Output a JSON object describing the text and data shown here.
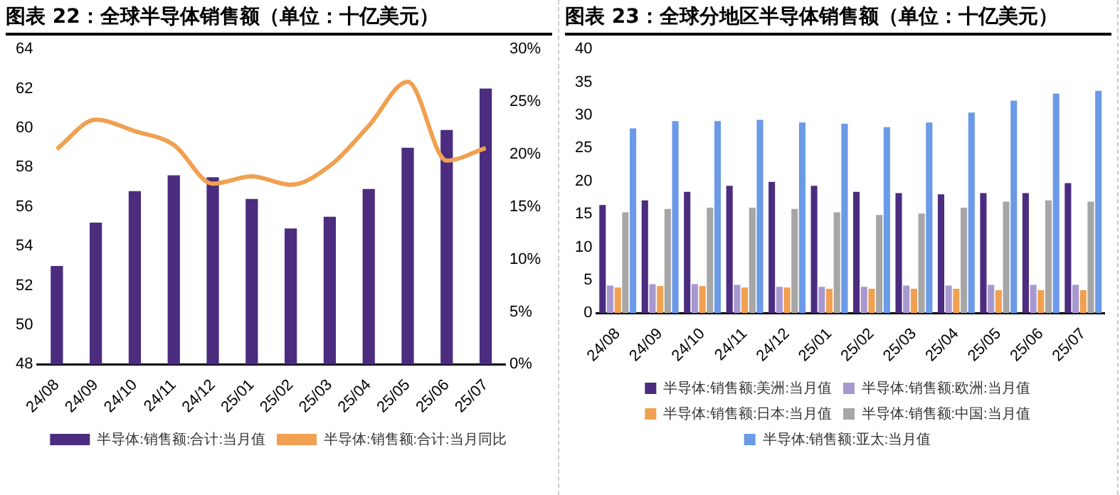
{
  "chart_data": [
    {
      "type": "bar",
      "title": "图表 22：全球半导体销售额（单位：十亿美元）",
      "categories": [
        "24/08",
        "24/09",
        "24/10",
        "24/11",
        "24/12",
        "25/01",
        "25/02",
        "25/03",
        "25/04",
        "25/05",
        "25/06",
        "25/07"
      ],
      "series": [
        {
          "name": "半导体:销售额:合计:当月值",
          "type": "bar",
          "color": "#4b2c7f",
          "values": [
            53.0,
            55.2,
            56.8,
            57.6,
            57.5,
            56.4,
            54.9,
            55.5,
            56.9,
            59.0,
            59.9,
            62.0
          ]
        },
        {
          "name": "半导体:销售额:合计:当月同比",
          "type": "line",
          "axis": "y2",
          "color": "#f0a050",
          "values": [
            20.5,
            23.3,
            22.2,
            20.9,
            17.2,
            17.9,
            17.1,
            18.9,
            22.7,
            26.9,
            19.4,
            20.6
          ]
        }
      ],
      "ylim": [
        48,
        64
      ],
      "yticks": [
        48,
        50,
        52,
        54,
        56,
        58,
        60,
        62,
        64
      ],
      "y2lim": [
        0,
        30
      ],
      "y2ticks": [
        {
          "value": 0,
          "label": "0%"
        },
        {
          "value": 5,
          "label": "5%"
        },
        {
          "value": 10,
          "label": "10%"
        },
        {
          "value": 15,
          "label": "15%"
        },
        {
          "value": 20,
          "label": "20%"
        },
        {
          "value": 25,
          "label": "25%"
        },
        {
          "value": 30,
          "label": "30%"
        }
      ],
      "grid": false,
      "legend": "bottom",
      "marker": "none"
    },
    {
      "type": "bar",
      "title": "图表 23：全球分地区半导体销售额（单位：十亿美元）",
      "categories": [
        "24/08",
        "24/09",
        "24/10",
        "24/11",
        "24/12",
        "25/01",
        "25/02",
        "25/03",
        "25/04",
        "25/05",
        "25/06",
        "25/07"
      ],
      "series": [
        {
          "name": "半导体:销售额:美洲:当月值",
          "color": "#4b2c7f",
          "values": [
            16.4,
            17.1,
            18.4,
            19.3,
            19.9,
            19.3,
            18.4,
            18.2,
            18.0,
            18.2,
            18.2,
            19.7
          ]
        },
        {
          "name": "半导体:销售额:欧洲:当月值",
          "color": "#a898d0",
          "values": [
            4.2,
            4.4,
            4.4,
            4.3,
            4.0,
            4.0,
            4.0,
            4.2,
            4.2,
            4.3,
            4.3,
            4.3
          ]
        },
        {
          "name": "半导体:销售额:日本:当月值",
          "color": "#f0a050",
          "values": [
            3.9,
            4.1,
            4.1,
            3.9,
            3.9,
            3.7,
            3.7,
            3.7,
            3.7,
            3.5,
            3.5,
            3.5
          ]
        },
        {
          "name": "半导体:销售额:中国:当月值",
          "color": "#a6a6a6",
          "values": [
            15.3,
            15.8,
            16.0,
            16.0,
            15.8,
            15.3,
            14.9,
            15.1,
            16.0,
            16.9,
            17.1,
            16.9
          ]
        },
        {
          "name": "半导体:销售额:亚太:当月值",
          "color": "#6a9ae8",
          "values": [
            28.0,
            29.1,
            29.1,
            29.3,
            28.9,
            28.7,
            28.2,
            28.9,
            30.4,
            32.2,
            33.3,
            33.7
          ]
        }
      ],
      "ylim": [
        0,
        40
      ],
      "yticks": [
        0,
        5,
        10,
        15,
        20,
        25,
        30,
        35,
        40
      ],
      "grid": false,
      "legend": "bottom"
    }
  ]
}
